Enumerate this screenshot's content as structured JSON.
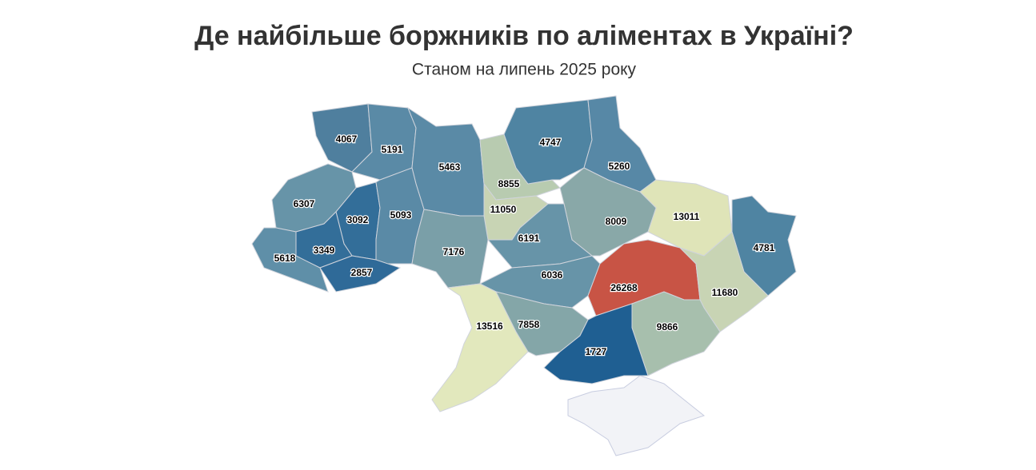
{
  "title": "Де найбільше боржників по аліментах в Україні?",
  "subtitle": "Станом на липень 2025 року",
  "regions": [
    {
      "value": 4067,
      "color": "#4f7f9e"
    },
    {
      "value": 5191,
      "color": "#5a8aa6"
    },
    {
      "value": 5463,
      "color": "#5a8aa6"
    },
    {
      "value": 8855,
      "color": "#b8cbb0"
    },
    {
      "value": 4747,
      "color": "#4f84a2"
    },
    {
      "value": 5260,
      "color": "#5788a6"
    },
    {
      "value": 6307,
      "color": "#6794a8"
    },
    {
      "value": 3092,
      "color": "#336e99"
    },
    {
      "value": 5093,
      "color": "#5a8aa6"
    },
    {
      "value": 11050,
      "color": "#c8d4b4"
    },
    {
      "value": 13011,
      "color": "#dfe4b8"
    },
    {
      "value": 8009,
      "color": "#89a8a8"
    },
    {
      "value": 4781,
      "color": "#4f84a2"
    },
    {
      "value": 6191,
      "color": "#6794a8"
    },
    {
      "value": 5618,
      "color": "#5f8fa8"
    },
    {
      "value": 3349,
      "color": "#336e99"
    },
    {
      "value": 7176,
      "color": "#7a9fa8"
    },
    {
      "value": 2857,
      "color": "#2f6a98"
    },
    {
      "value": 6036,
      "color": "#6794a8"
    },
    {
      "value": 26268,
      "color": "#c85445"
    },
    {
      "value": 11680,
      "color": "#c8d4b4"
    },
    {
      "value": 13516,
      "color": "#e2e8bd"
    },
    {
      "value": 7858,
      "color": "#84a6a8"
    },
    {
      "value": 9866,
      "color": "#a7bfad"
    },
    {
      "value": 1727,
      "color": "#1f5f92"
    }
  ]
}
